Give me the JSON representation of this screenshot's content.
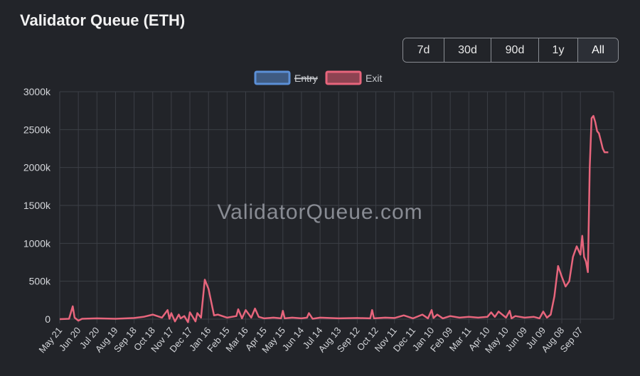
{
  "header": {
    "title": "Validator Queue (ETH)"
  },
  "range_buttons": [
    {
      "label": "7d"
    },
    {
      "label": "30d"
    },
    {
      "label": "90d"
    },
    {
      "label": "1y"
    },
    {
      "label": "All",
      "active": true
    }
  ],
  "watermark": "ValidatorQueue.com",
  "colors": {
    "background": "#222429",
    "grid": "#3c3f46",
    "entry": "#5b8fd6",
    "exit": "#e7657c",
    "axis_text": "#d4d6da"
  },
  "chart_data": {
    "type": "line",
    "legend": {
      "position": "top-center",
      "items": [
        {
          "label": "Entry",
          "hidden": true
        },
        {
          "label": "Exit",
          "hidden": false
        }
      ]
    },
    "ylim": [
      0,
      3000000
    ],
    "y_ticks": [
      {
        "value": 0,
        "label": "0"
      },
      {
        "value": 500000,
        "label": "500k"
      },
      {
        "value": 1000000,
        "label": "1000k"
      },
      {
        "value": 1500000,
        "label": "1500k"
      },
      {
        "value": 2000000,
        "label": "2000k"
      },
      {
        "value": 2500000,
        "label": "2500k"
      },
      {
        "value": 3000000,
        "label": "3000k"
      }
    ],
    "x_ticks": [
      "May 21",
      "Jun 20",
      "Jul 20",
      "Aug 19",
      "Sep 18",
      "Oct 18",
      "Nov 17",
      "Dec 17",
      "Jan 16",
      "Feb 15",
      "Mar 16",
      "Apr 15",
      "May 15",
      "Jun 14",
      "Jul 14",
      "Aug 13",
      "Sep 12",
      "Oct 12",
      "Nov 11",
      "Dec 11",
      "Jan 10",
      "Feb 09",
      "Mar 11",
      "Apr 10",
      "May 10",
      "Jun 09",
      "Jul 09",
      "Aug 08",
      "Sep 07"
    ],
    "series": [
      {
        "name": "Exit",
        "x": [
          0,
          0.5,
          0.7,
          0.8,
          0.9,
          1.0,
          1.2,
          2.0,
          3.0,
          4.0,
          4.5,
          5.0,
          5.5,
          5.8,
          5.9,
          6.0,
          6.2,
          6.4,
          6.5,
          6.7,
          6.9,
          7.0,
          7.2,
          7.3,
          7.4,
          7.6,
          7.8,
          8.0,
          8.3,
          8.5,
          9.0,
          9.5,
          9.6,
          9.8,
          10.0,
          10.3,
          10.5,
          10.7,
          11.0,
          11.5,
          11.9,
          12.0,
          12.1,
          12.5,
          13.0,
          13.3,
          13.4,
          13.6,
          14.0,
          15.0,
          16.0,
          16.7,
          16.8,
          16.9,
          17.5,
          18.0,
          18.5,
          19.0,
          19.5,
          19.8,
          20.0,
          20.1,
          20.3,
          20.6,
          21.0,
          21.5,
          22.0,
          22.5,
          23.0,
          23.2,
          23.4,
          23.6,
          24.0,
          24.2,
          24.3,
          24.5,
          25.0,
          25.5,
          25.8,
          26.0,
          26.2,
          26.4,
          26.6,
          26.8,
          27.0,
          27.2,
          27.4,
          27.6,
          27.8,
          28.0,
          28.1,
          28.2,
          28.3,
          28.4,
          28.5,
          28.6,
          28.7,
          28.8,
          28.9,
          29.0,
          29.1,
          29.2,
          29.3,
          29.4,
          29.5
        ],
        "y": [
          0,
          5000,
          170000,
          20000,
          0,
          -20000,
          5000,
          10000,
          5000,
          15000,
          30000,
          60000,
          20000,
          120000,
          5000,
          80000,
          -30000,
          60000,
          10000,
          40000,
          -40000,
          90000,
          10000,
          -30000,
          80000,
          20000,
          520000,
          400000,
          50000,
          60000,
          20000,
          40000,
          130000,
          10000,
          120000,
          20000,
          140000,
          30000,
          10000,
          20000,
          10000,
          110000,
          10000,
          20000,
          10000,
          20000,
          80000,
          5000,
          20000,
          10000,
          15000,
          10000,
          120000,
          10000,
          20000,
          15000,
          50000,
          10000,
          60000,
          10000,
          120000,
          15000,
          60000,
          10000,
          40000,
          20000,
          30000,
          20000,
          30000,
          90000,
          30000,
          100000,
          20000,
          110000,
          10000,
          40000,
          20000,
          30000,
          10000,
          100000,
          20000,
          60000,
          300000,
          700000,
          560000,
          430000,
          500000,
          820000,
          960000,
          850000,
          1100000,
          820000,
          760000,
          620000,
          2000000,
          2650000,
          2680000,
          2600000,
          2480000,
          2450000,
          2350000,
          2250000,
          2200000,
          2200000,
          2200000
        ]
      }
    ]
  }
}
